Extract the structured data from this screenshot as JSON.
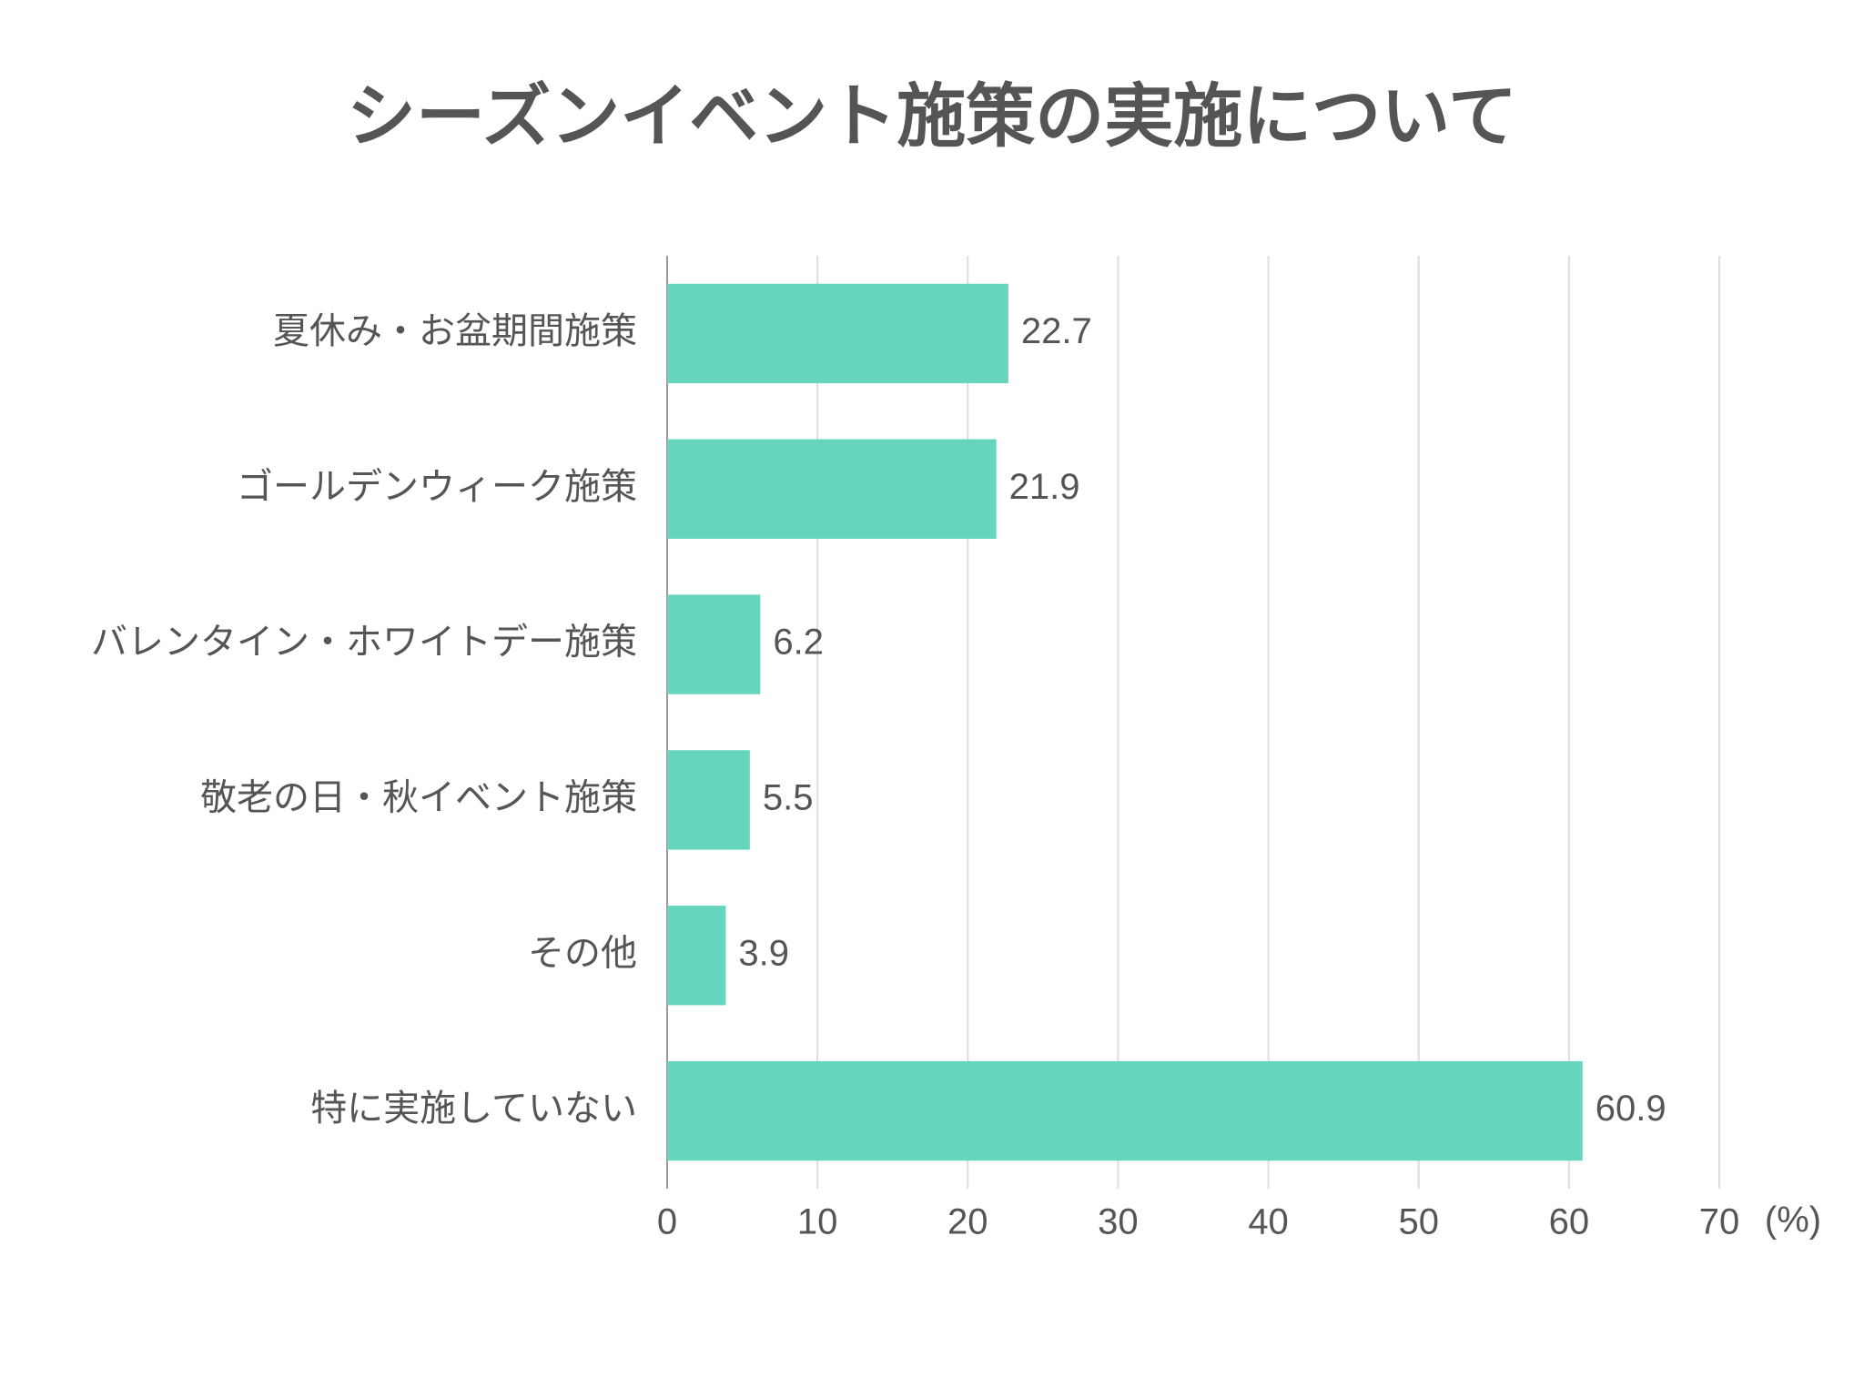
{
  "chart_data": {
    "type": "bar",
    "orientation": "horizontal",
    "title": "シーズンイベント施策の実施について",
    "categories": [
      "夏休み・お盆期間施策",
      "ゴールデンウィーク施策",
      "バレンタイン・ホワイトデー施策",
      "敬老の日・秋イベント施策",
      "その他",
      "特に実施していない"
    ],
    "values": [
      22.7,
      21.9,
      6.2,
      5.5,
      3.9,
      60.9
    ],
    "color": "#66d5be",
    "xlabel": "(%)",
    "xlim": [
      0,
      70
    ],
    "xticks": [
      0,
      10,
      20,
      30,
      40,
      50,
      60,
      70
    ],
    "grid": true
  }
}
